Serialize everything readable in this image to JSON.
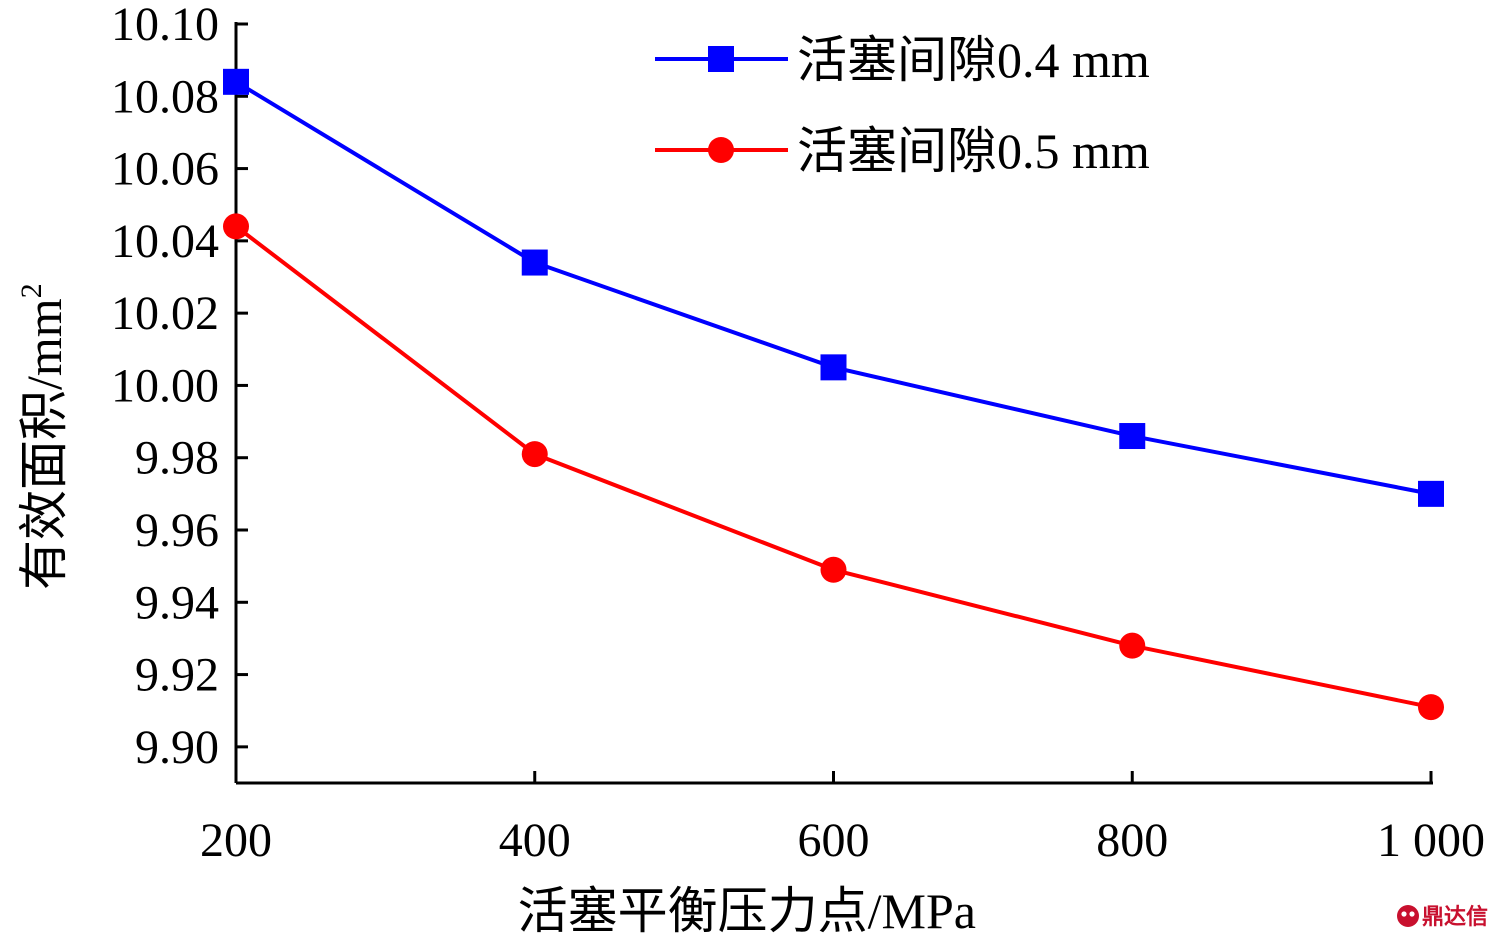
{
  "chart_data": {
    "type": "line",
    "x": [
      200,
      400,
      600,
      800,
      1000
    ],
    "x_tick_labels": [
      "200",
      "400",
      "600",
      "800",
      "1 000"
    ],
    "xlim": [
      200,
      1000
    ],
    "y_ticks": [
      9.9,
      9.92,
      9.94,
      9.96,
      9.98,
      10.0,
      10.02,
      10.04,
      10.06,
      10.08,
      10.1
    ],
    "y_tick_labels": [
      "9.90",
      "9.92",
      "9.94",
      "9.96",
      "9.98",
      "10.00",
      "10.02",
      "10.04",
      "10.06",
      "10.08",
      "10.10"
    ],
    "ylim": [
      9.89,
      10.1
    ],
    "xlabel": "活塞平衡压力点/MPa",
    "ylabel": "有效面积/mm",
    "ylabel_sup": "2",
    "grid": false,
    "legend_position": "top-right",
    "series": [
      {
        "name": "活塞间隙0.4 mm",
        "color": "#0000ff",
        "marker": "square",
        "values": [
          10.084,
          10.034,
          10.005,
          9.986,
          9.97
        ]
      },
      {
        "name": "活塞间隙0.5 mm",
        "color": "#ff0000",
        "marker": "circle",
        "values": [
          10.044,
          9.981,
          9.949,
          9.928,
          9.911
        ]
      }
    ]
  },
  "watermark": {
    "text": "鼎达信",
    "color": "#c8102e"
  }
}
